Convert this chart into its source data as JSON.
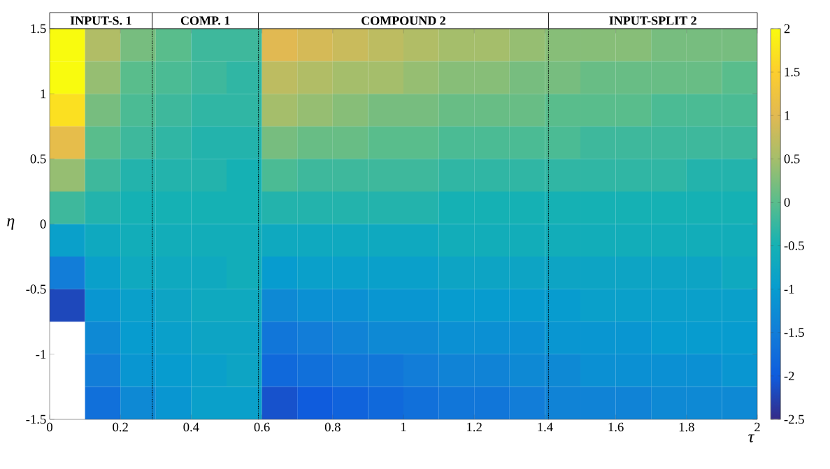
{
  "chart_data": {
    "type": "heatmap",
    "xlabel": "τ",
    "ylabel": "η",
    "xlim": [
      0,
      2
    ],
    "xticks": [
      0,
      0.2,
      0.4,
      0.6,
      0.8,
      1,
      1.2,
      1.4,
      1.6,
      1.8,
      2
    ],
    "ylim": [
      -1.5,
      1.5
    ],
    "yticks": [
      -1.5,
      -1,
      -0.5,
      0,
      0.5,
      1,
      1.5
    ],
    "clim": [
      -2.5,
      2
    ],
    "cticks": [
      -2.5,
      -2,
      -1.5,
      -1,
      -0.5,
      0,
      0.5,
      1,
      1.5,
      2
    ],
    "cells": [
      [
        2,
        0.6,
        0.2,
        0.0,
        -0.2,
        -0.2,
        1.0,
        0.9,
        0.8,
        0.7,
        0.6,
        0.5,
        0.5,
        0.4,
        0.3,
        0.3,
        0.3,
        0.2,
        0.2,
        0.2
      ],
      [
        2,
        0.4,
        0.0,
        -0.1,
        -0.2,
        -0.3,
        0.7,
        0.6,
        0.5,
        0.5,
        0.4,
        0.3,
        0.3,
        0.2,
        0.2,
        0.1,
        0.1,
        0.1,
        0.1,
        0.0
      ],
      [
        1.7,
        0.2,
        -0.1,
        -0.2,
        -0.3,
        -0.3,
        0.5,
        0.4,
        0.3,
        0.2,
        0.2,
        0.1,
        0.1,
        0.1,
        0.0,
        0.0,
        0.0,
        -0.1,
        -0.1,
        -0.1
      ],
      [
        1.1,
        0.0,
        -0.2,
        -0.3,
        -0.4,
        -0.4,
        0.2,
        0.1,
        0.1,
        0.0,
        0.0,
        -0.1,
        -0.1,
        -0.1,
        -0.1,
        -0.2,
        -0.2,
        -0.2,
        -0.2,
        -0.2
      ],
      [
        0.4,
        -0.2,
        -0.4,
        -0.4,
        -0.4,
        -0.5,
        -0.1,
        -0.2,
        -0.2,
        -0.2,
        -0.2,
        -0.3,
        -0.3,
        -0.3,
        -0.3,
        -0.3,
        -0.3,
        -0.3,
        -0.4,
        -0.4
      ],
      [
        -0.2,
        -0.4,
        -0.5,
        -0.5,
        -0.5,
        -0.5,
        -0.4,
        -0.4,
        -0.4,
        -0.4,
        -0.4,
        -0.5,
        -0.5,
        -0.5,
        -0.5,
        -0.5,
        -0.5,
        -0.5,
        -0.5,
        -0.5
      ],
      [
        -0.9,
        -0.7,
        -0.6,
        -0.6,
        -0.6,
        -0.6,
        -0.7,
        -0.7,
        -0.7,
        -0.7,
        -0.7,
        -0.6,
        -0.6,
        -0.6,
        -0.6,
        -0.6,
        -0.6,
        -0.6,
        -0.6,
        -0.6
      ],
      [
        -1.5,
        -0.9,
        -0.7,
        -0.7,
        -0.7,
        -0.6,
        -1.0,
        -0.9,
        -0.9,
        -0.9,
        -0.9,
        -0.8,
        -0.8,
        -0.8,
        -0.8,
        -0.8,
        -0.8,
        -0.8,
        -0.8,
        -0.7
      ],
      [
        -2.2,
        -1.1,
        -0.9,
        -0.8,
        -0.7,
        -0.7,
        -1.3,
        -1.2,
        -1.2,
        -1.1,
        -1.1,
        -1.0,
        -1.0,
        -1.0,
        -1.0,
        -0.9,
        -0.9,
        -0.9,
        -0.9,
        -0.9
      ],
      [
        null,
        -1.3,
        -1.0,
        -0.9,
        -0.8,
        -0.8,
        -1.6,
        -1.5,
        -1.4,
        -1.3,
        -1.3,
        -1.2,
        -1.2,
        -1.2,
        -1.1,
        -1.1,
        -1.1,
        -1.0,
        -1.0,
        -1.0
      ],
      [
        null,
        -1.5,
        -1.1,
        -1.0,
        -0.9,
        -0.8,
        -1.8,
        -1.7,
        -1.6,
        -1.6,
        -1.5,
        -1.4,
        -1.4,
        -1.3,
        -1.3,
        -1.2,
        -1.2,
        -1.2,
        -1.2,
        -1.1
      ],
      [
        null,
        -1.7,
        -1.3,
        -1.1,
        -0.9,
        -0.9,
        -2.1,
        -2.0,
        -1.9,
        -1.8,
        -1.7,
        -1.6,
        -1.6,
        -1.5,
        -1.4,
        -1.4,
        -1.4,
        -1.3,
        -1.3,
        -1.3
      ]
    ],
    "annotations": [
      "INPUT-S. 1",
      "COMP. 1",
      "COMPOUND 2",
      "INPUT-SPLIT 2"
    ],
    "ref_lines": [
      {
        "axis": "x",
        "value": 0.29,
        "color": "#000000",
        "line_style": "dotted"
      },
      {
        "axis": "x",
        "value": 0.59,
        "color": "#000000",
        "line_style": "dotted"
      },
      {
        "axis": "x",
        "value": 1.41,
        "color": "#000000",
        "line_style": "dotted"
      }
    ]
  }
}
